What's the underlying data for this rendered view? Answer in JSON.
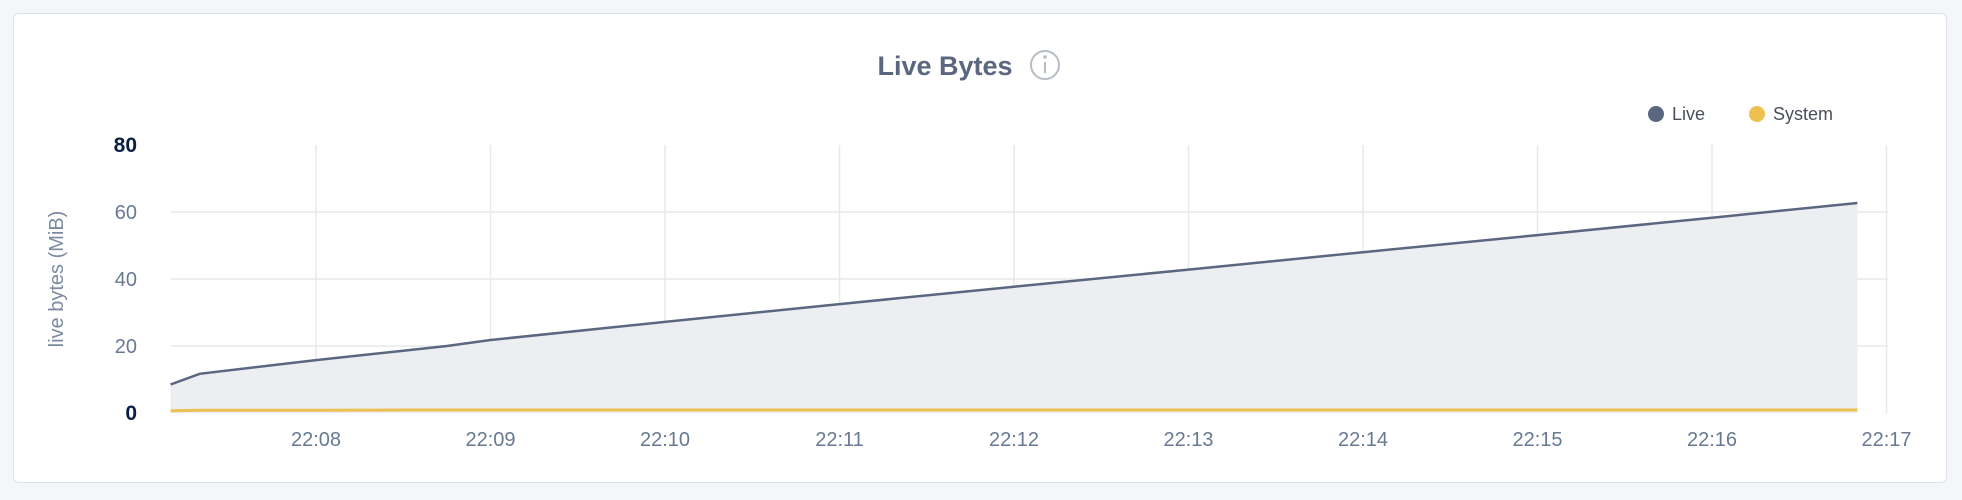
{
  "card": {
    "title": "Live Bytes",
    "info_icon": "info-circle-icon"
  },
  "chart_data": {
    "type": "area",
    "title": "Live Bytes",
    "ylabel": "live bytes (MiB)",
    "xlabel": "",
    "ylim": [
      0,
      80
    ],
    "yticks": [
      "0",
      "20",
      "40",
      "60",
      "80"
    ],
    "xticks": [
      "22:08",
      "22:09",
      "22:10",
      "22:11",
      "22:12",
      "22:13",
      "22:14",
      "22:15",
      "22:16",
      "22:17"
    ],
    "grid": true,
    "legend_position": "top-right",
    "x": [
      "22:07:10",
      "22:07:20",
      "22:08:00",
      "22:08:30",
      "22:08:45",
      "22:09:00",
      "22:10:00",
      "22:11:00",
      "22:12:00",
      "22:13:00",
      "22:14:00",
      "22:15:00",
      "22:16:00",
      "22:16:50"
    ],
    "series": [
      {
        "name": "Live",
        "color": "#5b6680",
        "fill": "#edeef2",
        "values": [
          8.5,
          11.7,
          15.8,
          18.6,
          20.0,
          21.8,
          27.2,
          32.5,
          37.7,
          42.8,
          48.0,
          53.1,
          58.3,
          62.7
        ]
      },
      {
        "name": "System",
        "color": "#eec050",
        "values": [
          0.7,
          0.8,
          0.8,
          0.9,
          0.9,
          0.9,
          0.9,
          0.9,
          0.9,
          0.9,
          0.9,
          0.9,
          0.9,
          0.9
        ]
      }
    ]
  }
}
